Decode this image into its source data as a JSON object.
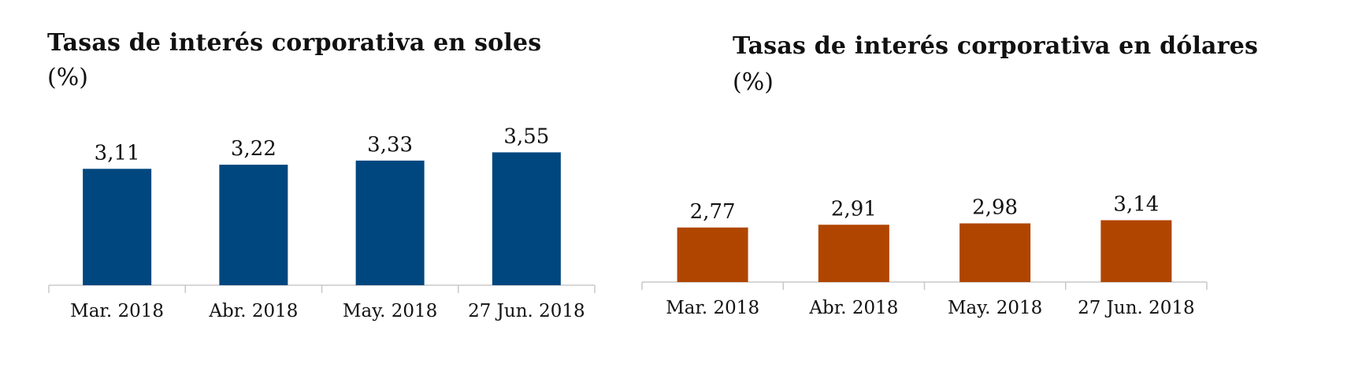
{
  "chart_data": [
    {
      "type": "bar",
      "title": "Tasas de interés corporativa en soles",
      "subtitle": "(%)",
      "categories": [
        "Mar. 2018",
        "Abr. 2018",
        "May. 2018",
        "27 Jun. 2018"
      ],
      "values": [
        3.11,
        3.22,
        3.33,
        3.55
      ],
      "value_labels": [
        "3,11",
        "3,22",
        "3,33",
        "3,55"
      ],
      "ylim": [
        0,
        6.3
      ],
      "grid": false,
      "color": "#00477F"
    },
    {
      "type": "bar",
      "title": "Tasas de interés corporativa en dólares",
      "subtitle": "(%)",
      "categories": [
        "Mar. 2018",
        "Abr. 2018",
        "May. 2018",
        "27 Jun. 2018"
      ],
      "values": [
        2.77,
        2.91,
        2.98,
        3.14
      ],
      "value_labels": [
        "2,77",
        "2,91",
        "2,98",
        "3,14"
      ],
      "ylim": [
        0,
        6.3
      ],
      "grid": false,
      "color": "#B04500"
    }
  ]
}
